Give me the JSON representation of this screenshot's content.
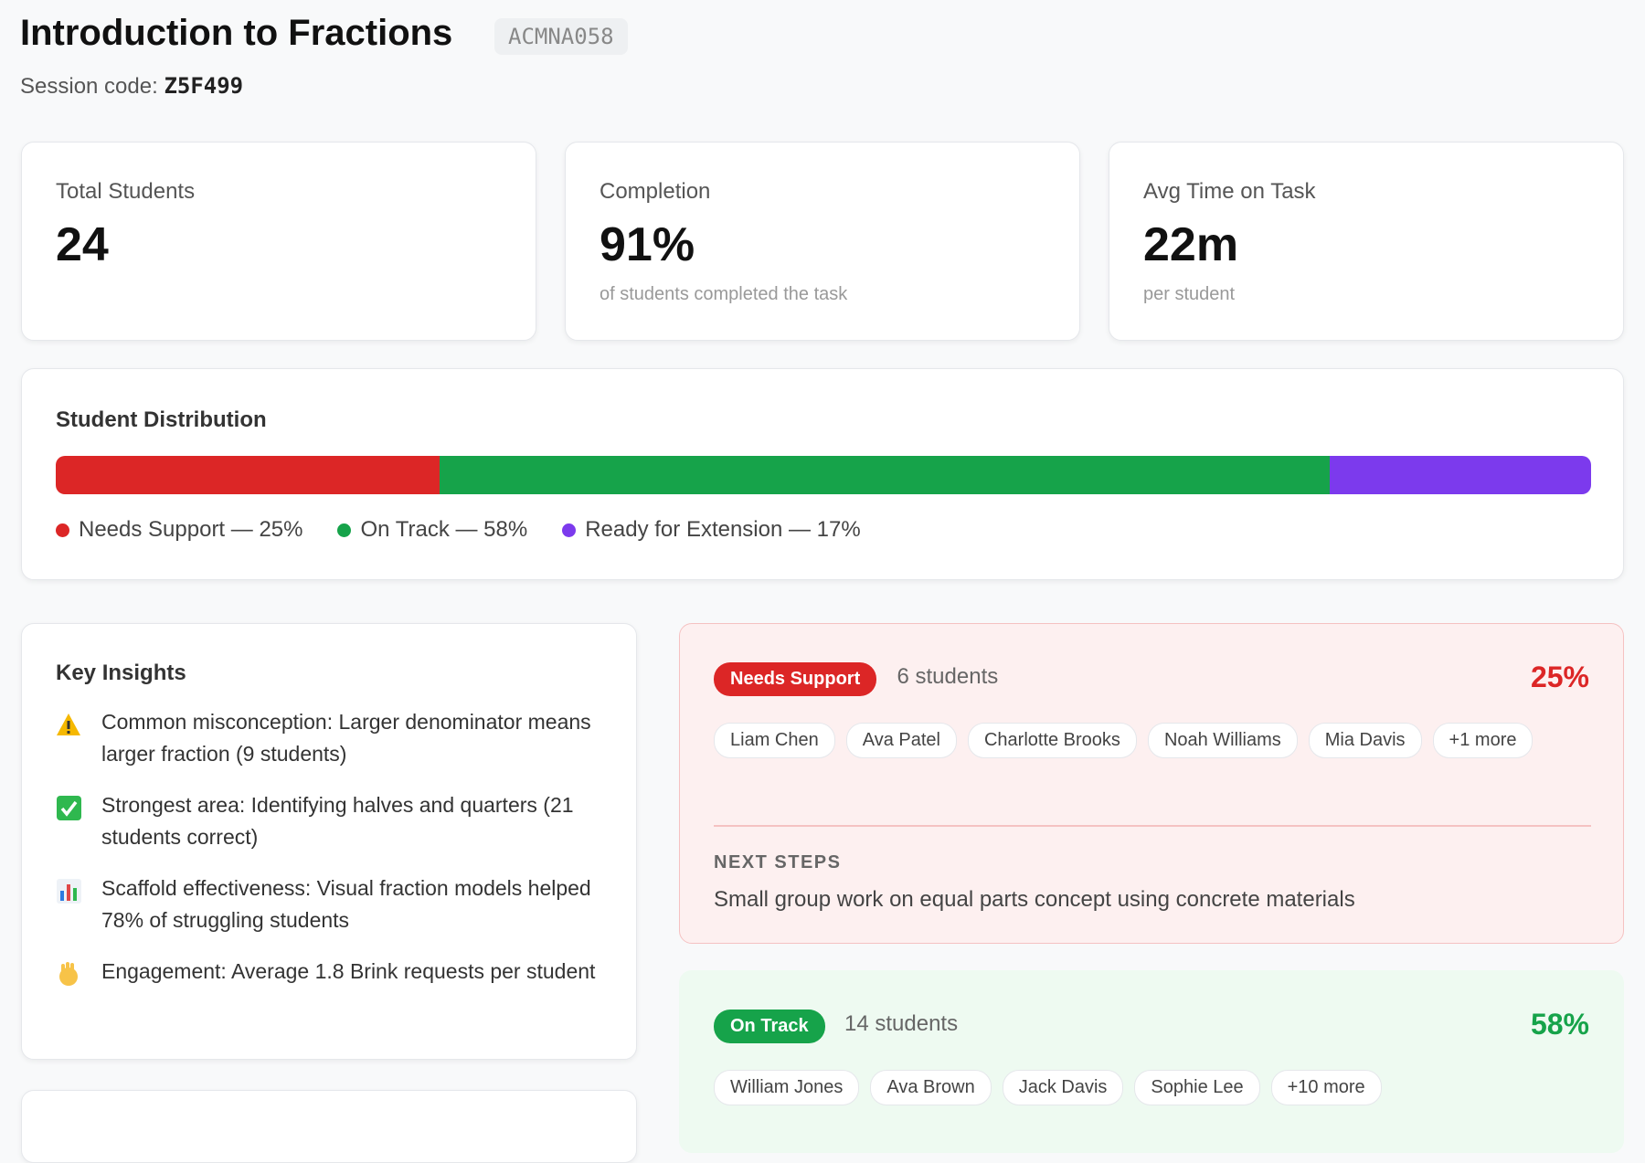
{
  "header": {
    "title": "Introduction to Fractions",
    "code_tag": "ACMNA058",
    "session_label": "Session code:",
    "session_code": "Z5F499"
  },
  "stats": [
    {
      "label": "Total Students",
      "value": "24"
    },
    {
      "label": "Completion",
      "value": "91%",
      "sub": "of students completed the task"
    },
    {
      "label": "Avg Time on Task",
      "value": "22m",
      "sub": "per student"
    }
  ],
  "distribution": {
    "title": "Student Distribution",
    "segments": [
      {
        "label": "Needs Support — 25%",
        "value": 25,
        "color": "#dc2626"
      },
      {
        "label": "On Track — 58%",
        "value": 58,
        "color": "#16a34a"
      },
      {
        "label": "Ready for Extension — 17%",
        "value": 17,
        "color": "#7c3aed"
      }
    ]
  },
  "insights": {
    "title": "Key Insights",
    "items": [
      "Common misconception: Larger denominator means larger fraction (9 students)",
      "Strongest area: Identifying halves and quarters (21 students correct)",
      "Scaffold effectiveness: Visual fraction models helped 78% of struggling students",
      "Engagement: Average 1.8 Brink requests per student"
    ]
  },
  "groups": [
    {
      "badge": "Needs Support",
      "count": "6 students",
      "percent": "25%",
      "students": [
        "Liam Chen",
        "Ava Patel",
        "Charlotte Brooks",
        "Noah Williams",
        "Mia Davis",
        "+1 more"
      ],
      "next_steps_title": "NEXT STEPS",
      "next_steps": "Small group work on equal parts concept using concrete materials"
    },
    {
      "badge": "On Track",
      "count": "14 students",
      "percent": "58%",
      "students": [
        "William Jones",
        "Ava Brown",
        "Jack Davis",
        "Sophie Lee",
        "+10 more"
      ]
    }
  ]
}
